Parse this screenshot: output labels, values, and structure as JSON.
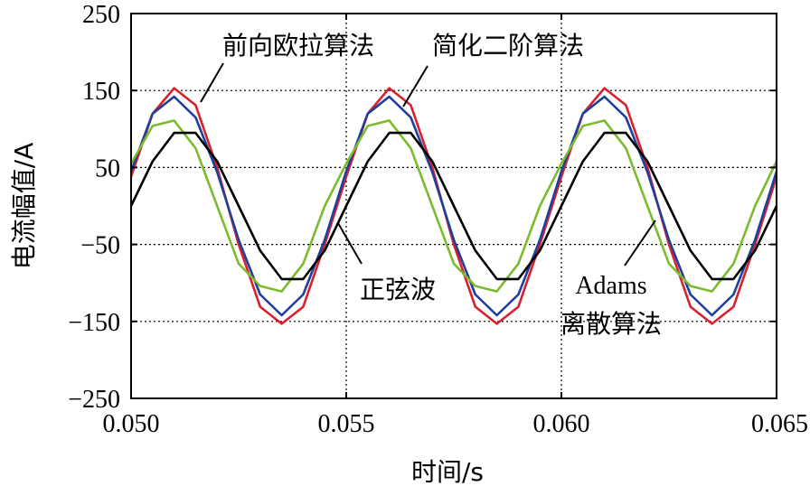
{
  "chart_data": {
    "type": "line",
    "title": "",
    "xlabel": "时间/s",
    "ylabel": "电流幅值/A",
    "xlim": [
      0.05,
      0.065
    ],
    "ylim": [
      -250,
      250
    ],
    "xticks": [
      0.05,
      0.055,
      0.06,
      0.065
    ],
    "xtick_labels": [
      "0.050",
      "0.055",
      "0.060",
      "0.065"
    ],
    "yticks": [
      250,
      150,
      50,
      -50,
      -150,
      -250
    ],
    "ytick_labels": [
      "250",
      "150",
      "50",
      "−50",
      "−150",
      "−250"
    ],
    "grid": "dotted, at ticks",
    "legend": "none (inline annotations)",
    "series": [
      {
        "name": "前向欧拉算法",
        "color": "#d8202e",
        "x": [
          0.05,
          0.0505,
          0.051,
          0.0515,
          0.052,
          0.0525,
          0.053,
          0.0535,
          0.054,
          0.0545,
          0.055,
          0.0555,
          0.056,
          0.0565,
          0.057,
          0.0575,
          0.058,
          0.0585,
          0.059,
          0.0595,
          0.06,
          0.0605,
          0.061,
          0.0615,
          0.062,
          0.0625,
          0.063,
          0.0635,
          0.064,
          0.0645,
          0.065
        ],
        "y": [
          38,
          120,
          153,
          131,
          50,
          -50,
          -131,
          -153,
          -131,
          -50,
          38,
          120,
          153,
          131,
          50,
          -50,
          -131,
          -153,
          -131,
          -50,
          38,
          120,
          153,
          131,
          50,
          -50,
          -131,
          -153,
          -131,
          -50,
          38
        ]
      },
      {
        "name": "简化二阶算法",
        "color": "#1f3f9a",
        "x": [
          0.05,
          0.0505,
          0.051,
          0.0515,
          0.052,
          0.0525,
          0.053,
          0.0535,
          0.054,
          0.0545,
          0.055,
          0.0555,
          0.056,
          0.0565,
          0.057,
          0.0575,
          0.058,
          0.0585,
          0.059,
          0.0595,
          0.06,
          0.0605,
          0.061,
          0.0615,
          0.062,
          0.0625,
          0.063,
          0.0635,
          0.064,
          0.0645,
          0.065
        ],
        "y": [
          45,
          120,
          142,
          115,
          44,
          -44,
          -115,
          -142,
          -115,
          -44,
          45,
          120,
          142,
          115,
          44,
          -44,
          -115,
          -142,
          -115,
          -44,
          45,
          120,
          142,
          115,
          44,
          -44,
          -115,
          -142,
          -115,
          -44,
          45
        ]
      },
      {
        "name": "Adams 离散算法",
        "color": "#7dbb2e",
        "x": [
          0.05,
          0.0505,
          0.051,
          0.0515,
          0.052,
          0.0525,
          0.053,
          0.0535,
          0.054,
          0.0545,
          0.055,
          0.0555,
          0.056,
          0.0565,
          0.057,
          0.0575,
          0.058,
          0.0585,
          0.059,
          0.0595,
          0.06,
          0.0605,
          0.061,
          0.0615,
          0.062,
          0.0625,
          0.063,
          0.0635,
          0.064,
          0.0645,
          0.065
        ],
        "y": [
          55,
          104,
          111,
          75,
          0,
          -75,
          -104,
          -111,
          -75,
          0,
          55,
          104,
          111,
          75,
          0,
          -75,
          -104,
          -111,
          -75,
          0,
          55,
          104,
          111,
          75,
          0,
          -75,
          -104,
          -111,
          -75,
          0,
          58
        ]
      },
      {
        "name": "正弦波",
        "color": "#000000",
        "x": [
          0.05,
          0.0505,
          0.051,
          0.0515,
          0.052,
          0.0525,
          0.053,
          0.0535,
          0.054,
          0.0545,
          0.055,
          0.0555,
          0.056,
          0.0565,
          0.057,
          0.0575,
          0.058,
          0.0585,
          0.059,
          0.0595,
          0.06,
          0.0605,
          0.061,
          0.0615,
          0.062,
          0.0625,
          0.063,
          0.0635,
          0.064,
          0.0645,
          0.065
        ],
        "y": [
          0,
          58,
          95,
          95,
          58,
          0,
          -58,
          -95,
          -95,
          -58,
          0,
          58,
          95,
          95,
          58,
          0,
          -58,
          -95,
          -95,
          -58,
          0,
          58,
          95,
          95,
          58,
          0,
          -58,
          -95,
          -95,
          -58,
          0
        ]
      }
    ],
    "annotations": [
      {
        "text": "前向欧拉算法",
        "target": "前向欧拉算法"
      },
      {
        "text": "简化二阶算法",
        "target": "简化二阶算法"
      },
      {
        "text": "正弦波",
        "target": "正弦波"
      },
      {
        "text_line1": "Adams",
        "text_line2": "离散算法",
        "target": "Adams 离散算法"
      }
    ]
  }
}
